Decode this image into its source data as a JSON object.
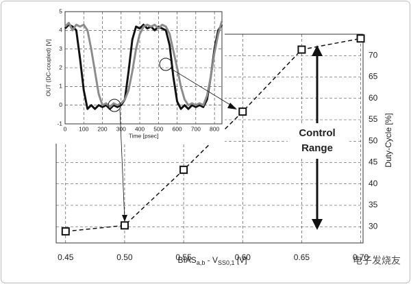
{
  "chart_data": [
    {
      "type": "line",
      "x": [
        0.45,
        0.5,
        0.55,
        0.6,
        0.65,
        0.7
      ],
      "values": [
        28.9,
        30.3,
        43.3,
        56.9,
        71.4,
        74.0
      ],
      "color": "#111111",
      "marker": "square",
      "dashed": true,
      "grid": true,
      "yaxis_side": "right",
      "xlim": [
        0.442,
        0.702
      ],
      "ylim": [
        26.2,
        75
      ],
      "xticks": [
        0.45,
        {
          "value": 0.5,
          "label": "0.50"
        },
        0.55,
        {
          "value": 0.6,
          "label": "0.60"
        },
        0.65,
        {
          "value": 0.7,
          "label": "0.70"
        }
      ],
      "yticks": [
        30,
        35,
        40,
        45,
        50,
        55,
        60,
        65,
        70
      ],
      "xlabel": {
        "main": "BIAS",
        "sub1": "a,b",
        "mid": " - V",
        "sub2": "SS0,1",
        "unit": " [V]"
      },
      "ylabel": "Duty-Cycle [%]",
      "annotation": [
        "Control",
        "Range"
      ],
      "watermark": "电子发烧友"
    },
    {
      "type": "line",
      "x": [
        0,
        20,
        40,
        60,
        80,
        100,
        120,
        140,
        160,
        180,
        200,
        220,
        240,
        260,
        280,
        300,
        320,
        340,
        360,
        380,
        400,
        420,
        440,
        460,
        480,
        500,
        520,
        540,
        560,
        580,
        600,
        620,
        640,
        660,
        680,
        700,
        720,
        740,
        760,
        780,
        800,
        820,
        840
      ],
      "series": [
        {
          "color": "#111111",
          "values": [
            4.1,
            4.3,
            4.2,
            4.0,
            2.5,
            0.8,
            -0.2,
            0.0,
            -0.2,
            0.0,
            -0.1,
            0.0,
            -0.2,
            0.0,
            -0.1,
            0.0,
            0.3,
            1.8,
            3.5,
            4.2,
            4.1,
            4.3,
            4.1,
            4.2,
            4.0,
            4.2,
            4.1,
            4.0,
            3.2,
            1.5,
            0.2,
            -0.2,
            0.0,
            -0.2,
            0.0,
            -0.1,
            0.0,
            -0.1,
            0.3,
            1.5,
            3.0,
            4.0,
            4.3
          ]
        },
        {
          "color": "#8c8c8c",
          "values": [
            4.2,
            4.4,
            4.0,
            4.3,
            4.2,
            4.3,
            4.0,
            3.0,
            1.8,
            0.6,
            0.0,
            0.1,
            -0.1,
            0.1,
            0.0,
            0.1,
            0.3,
            0.8,
            1.8,
            3.0,
            3.8,
            4.2,
            4.3,
            4.2,
            4.3,
            4.1,
            4.3,
            4.2,
            3.8,
            2.9,
            2.0,
            1.0,
            0.3,
            0.0,
            0.1,
            0.0,
            0.1,
            0.0,
            0.5,
            1.5,
            2.8,
            3.8,
            4.5
          ]
        }
      ],
      "grid": true,
      "xlim": [
        0,
        840
      ],
      "ylim": [
        -1,
        5
      ],
      "xticks": [
        0,
        100,
        200,
        300,
        400,
        500,
        600,
        700,
        800
      ],
      "yticks": [
        -1,
        0,
        1,
        2,
        3,
        4,
        5
      ],
      "xlabel": "Time [psec]",
      "ylabel": "OUT (DC-coupled) [V]"
    }
  ]
}
